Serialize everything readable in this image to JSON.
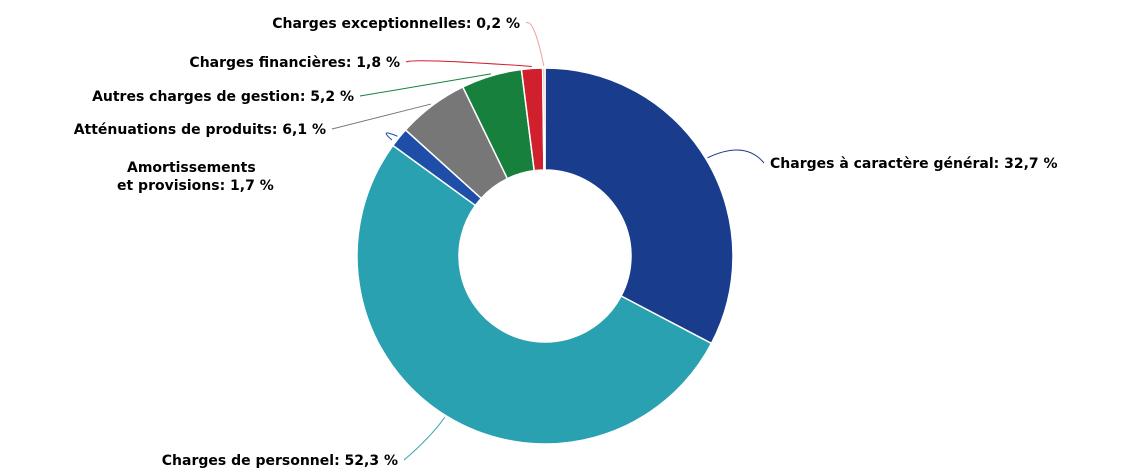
{
  "chart_data": {
    "type": "pie",
    "variant": "donut",
    "title": "",
    "slices": [
      {
        "label": "Charges à caractère général: 32,7 %",
        "value": 32.7,
        "color": "#1a3c8c"
      },
      {
        "label": "Charges de personnel: 52,3 %",
        "value": 52.3,
        "color": "#2aa1b0"
      },
      {
        "label": "Amortissements et provisions: 1,7 %",
        "label_lines": [
          "Amortissements",
          "et provisions: 1,7 %"
        ],
        "value": 1.7,
        "color": "#1f4ea8"
      },
      {
        "label": "Atténuations de produits: 6,1 %",
        "value": 6.1,
        "color": "#777777"
      },
      {
        "label": "Autres charges de gestion: 5,2 %",
        "value": 5.2,
        "color": "#17803d"
      },
      {
        "label": "Charges financières: 1,8 %",
        "value": 1.8,
        "color": "#d0202e"
      },
      {
        "label": "Charges exceptionnelles: 0,2 %",
        "value": 0.2,
        "color": "#f2a0a0"
      }
    ]
  }
}
